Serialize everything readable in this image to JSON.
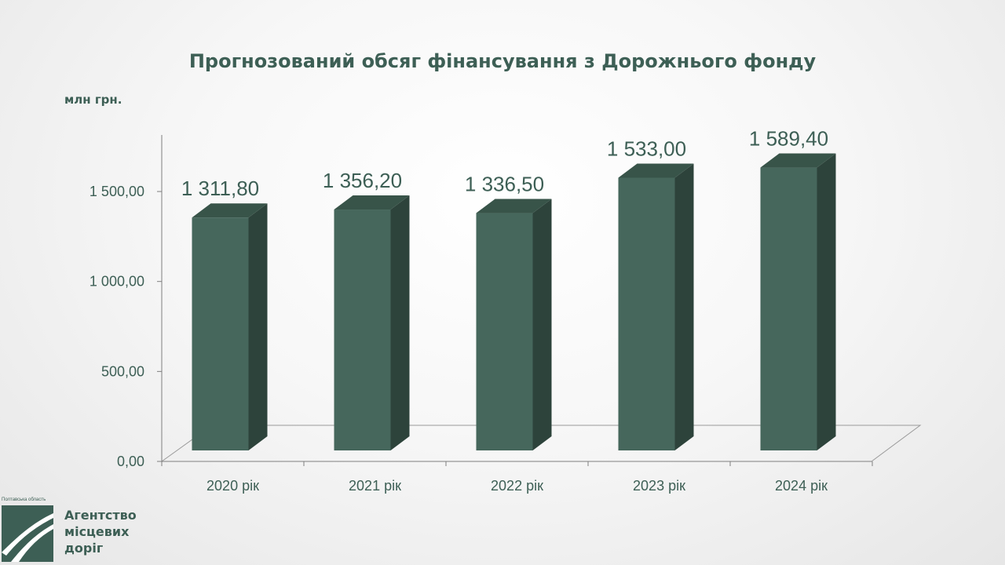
{
  "chart_data": {
    "type": "bar",
    "title": "Прогнозований обсяг фінансування з Дорожнього фонду",
    "unit_label": "млн грн.",
    "categories": [
      "2020 рік",
      "2021 рік",
      "2022 рік",
      "2023 рік",
      "2024 рік"
    ],
    "values": [
      1311.8,
      1356.2,
      1336.5,
      1533.0,
      1589.4
    ],
    "value_labels": [
      "1 311,80",
      "1 356,20",
      "1 336,50",
      "1 533,00",
      "1 589,40"
    ],
    "yticks": [
      0,
      500,
      1000,
      1500
    ],
    "ytick_labels": [
      "0,00",
      "500,00",
      "1 000,00",
      "1 500,00"
    ],
    "ylim": [
      0,
      1800
    ],
    "grid": false,
    "legend": "none",
    "colors": {
      "bar_front": "#46675c",
      "bar_side": "#2d433b",
      "bar_top": "#385449",
      "text": "#3d5f55",
      "axis": "#7f7f7f"
    }
  },
  "logo": {
    "region": "Полтавська область",
    "name_lines": [
      "Агентство",
      "місцевих",
      "доріг"
    ]
  }
}
